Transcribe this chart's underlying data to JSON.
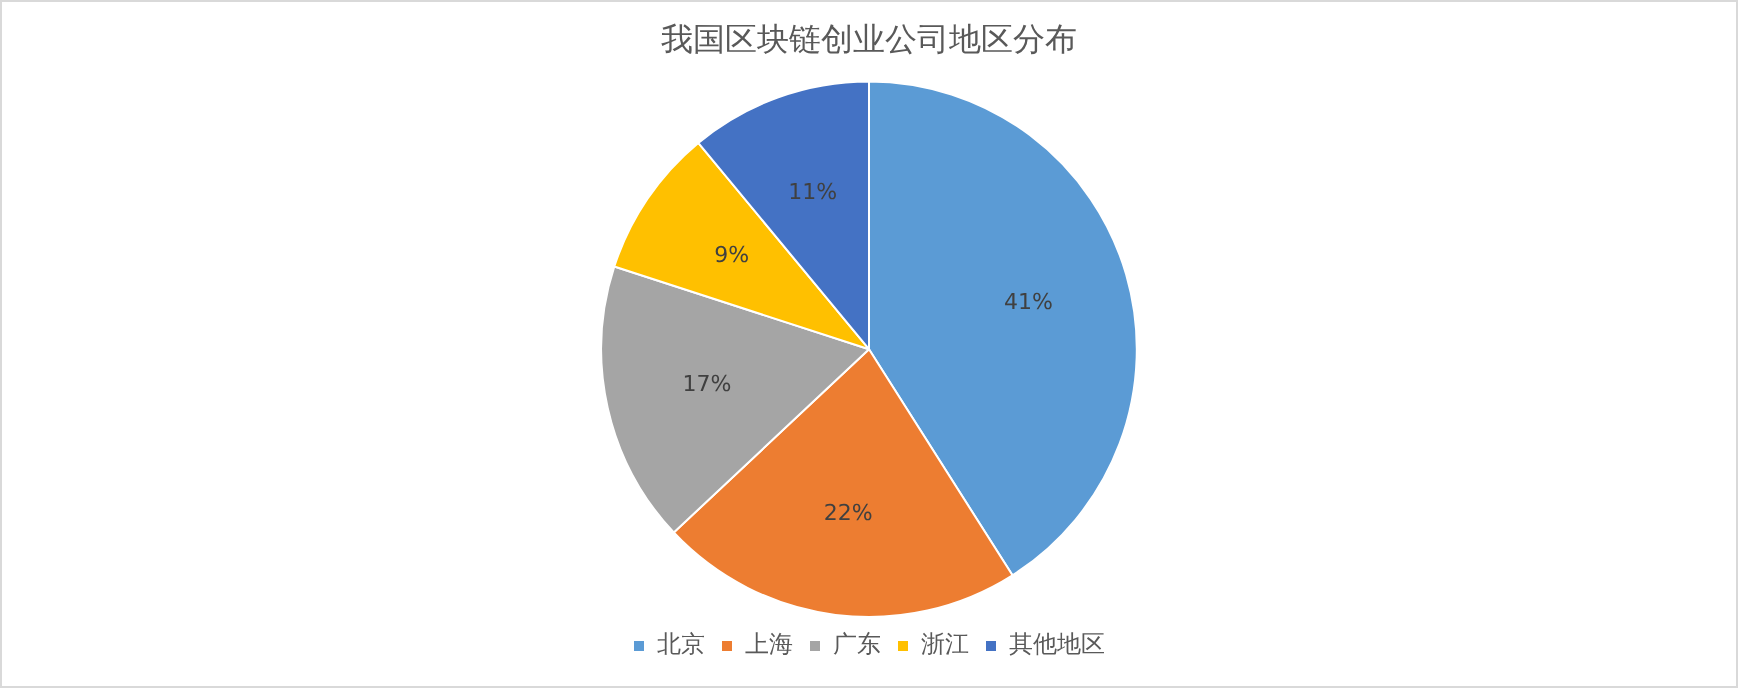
{
  "chart_data": {
    "type": "pie",
    "title": "我国区块链创业公司地区分布",
    "categories": [
      "北京",
      "上海",
      "广东",
      "浙江",
      "其他地区"
    ],
    "values": [
      41,
      22,
      17,
      9,
      11
    ],
    "colors": [
      "#5b9bd5",
      "#ed7d31",
      "#a5a5a5",
      "#ffc000",
      "#4472c4"
    ],
    "value_labels": [
      "41%",
      "22%",
      "17%",
      "9%",
      "11%"
    ],
    "legend": "bottom"
  }
}
